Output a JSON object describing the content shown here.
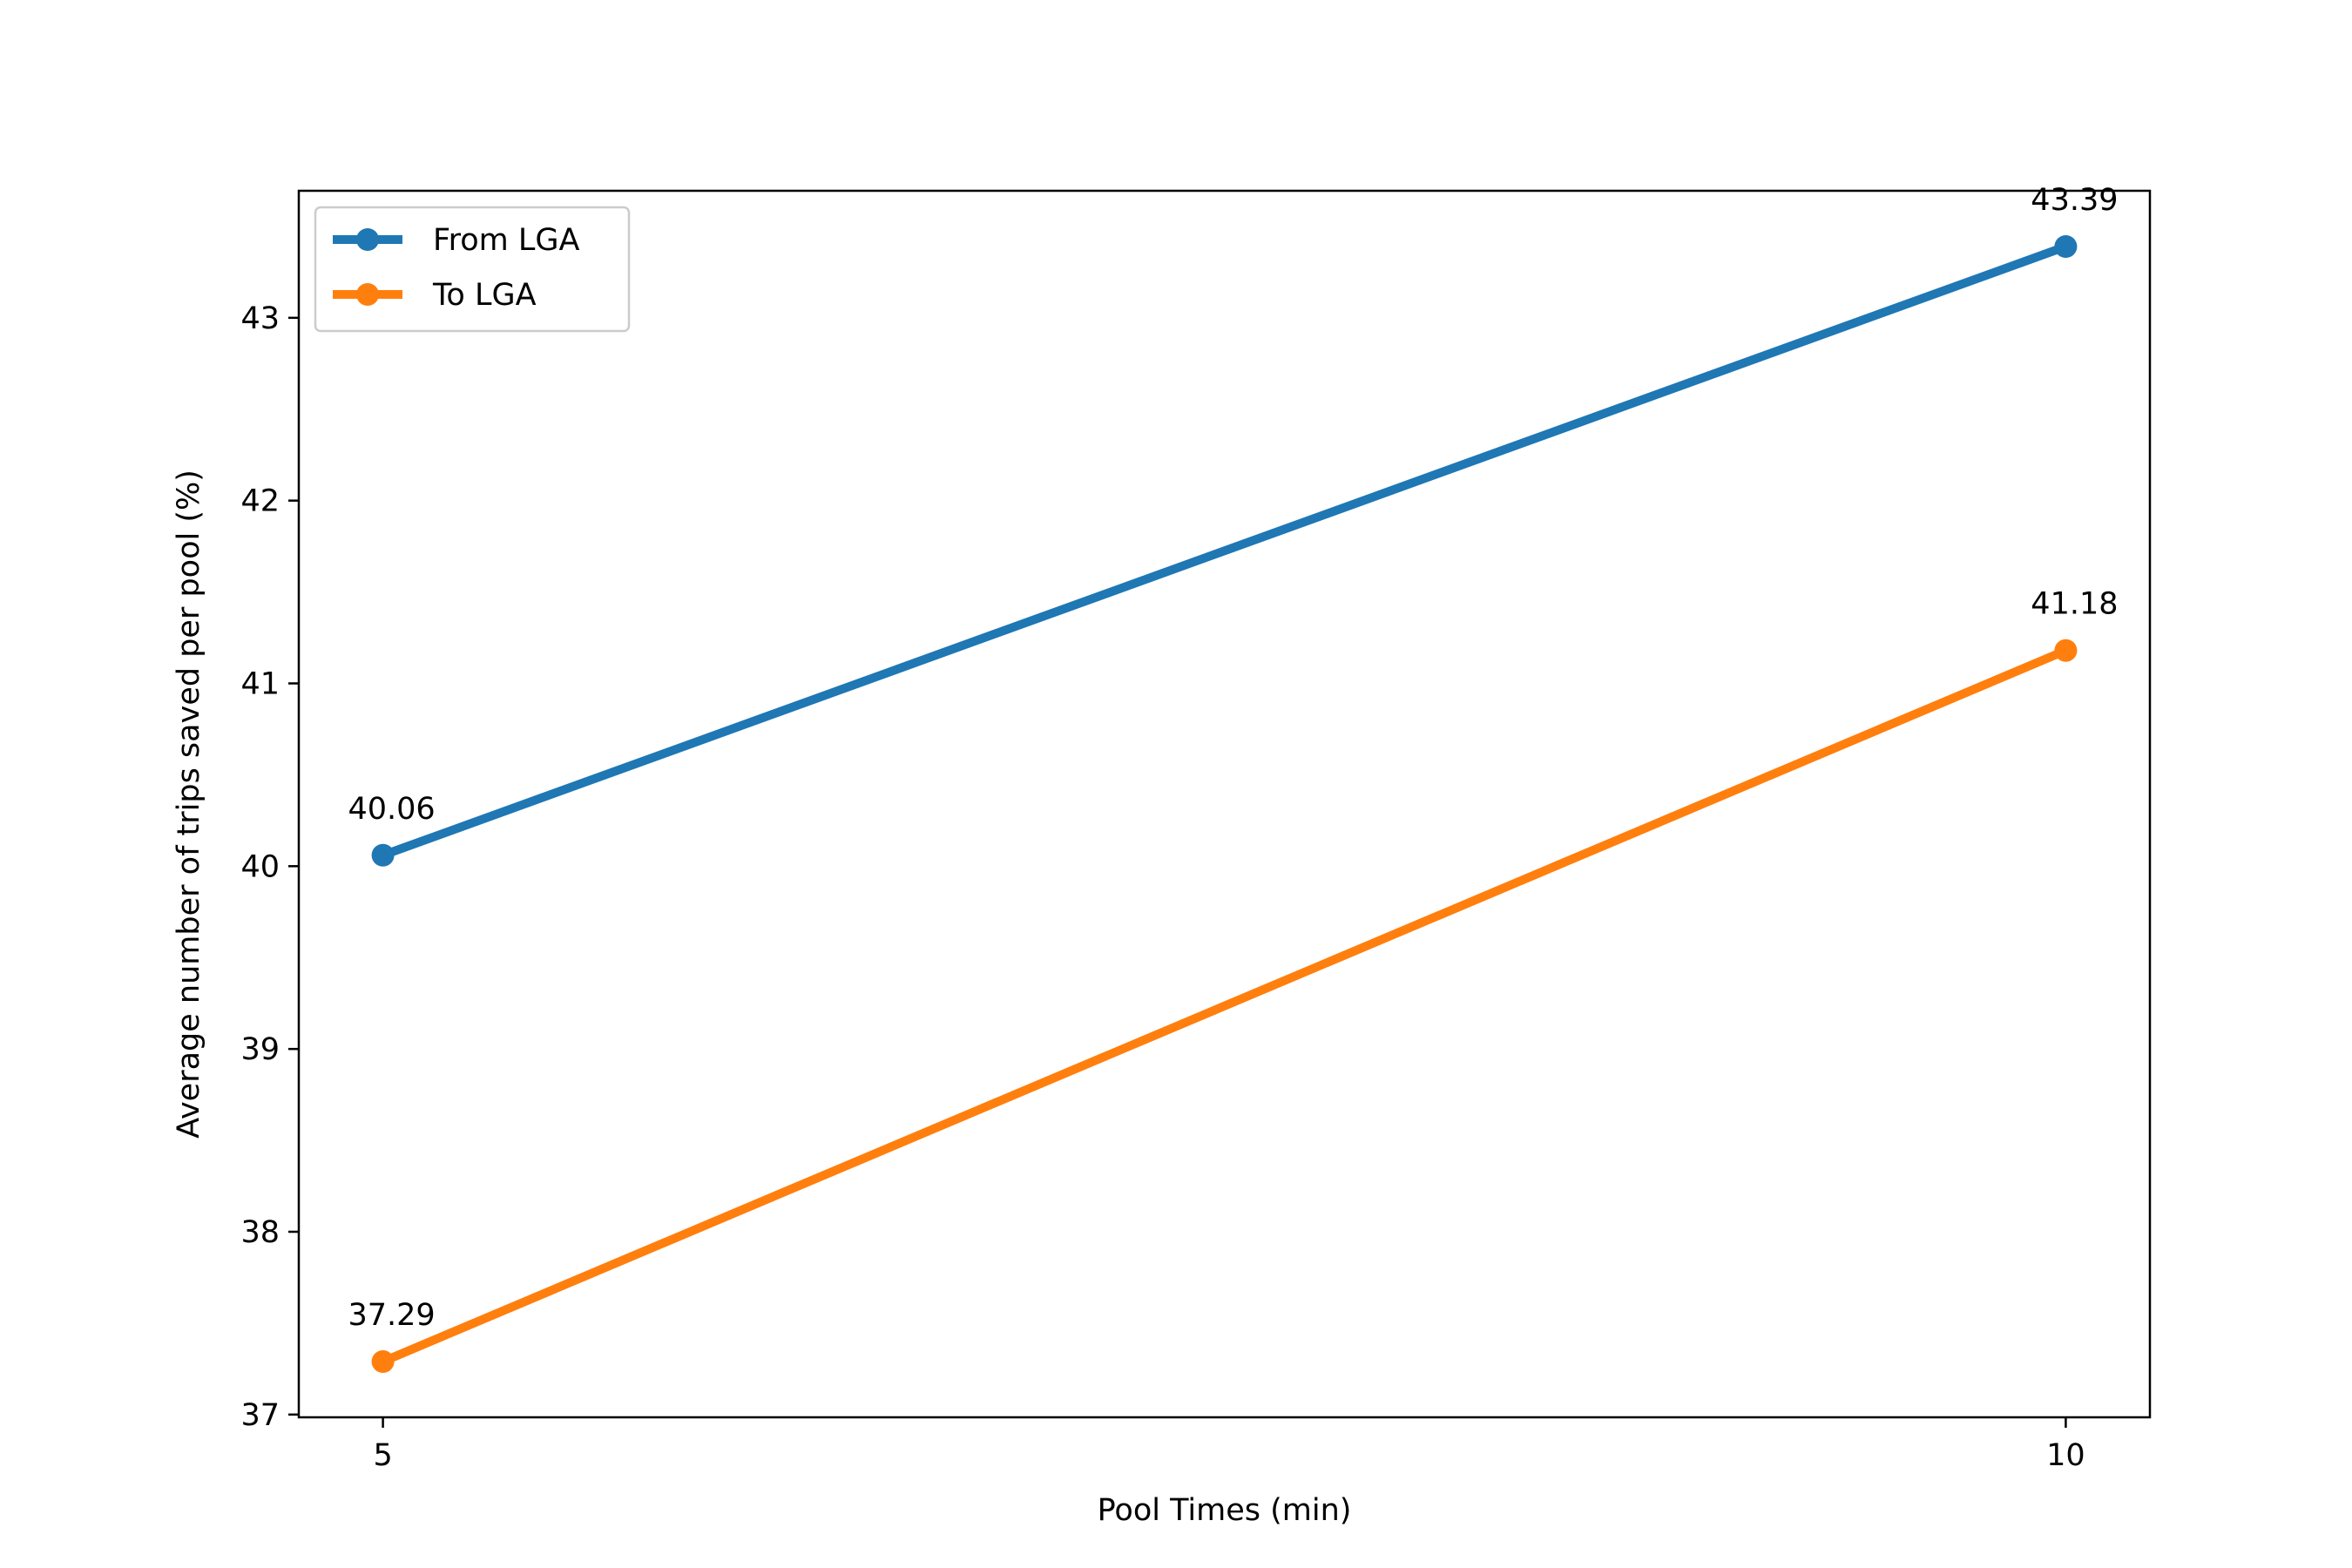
{
  "chart_data": {
    "type": "line",
    "title": "",
    "xlabel": "Pool Times (min)",
    "ylabel": "Average number of trips saved per pool (%)",
    "x": [
      5,
      10
    ],
    "xticks": [
      5,
      10
    ],
    "xlim": [
      4.75,
      10.25
    ],
    "yticks": [
      37,
      38,
      39,
      40,
      41,
      42,
      43
    ],
    "ylim": [
      36.985,
      43.695
    ],
    "grid": false,
    "legend": "top-left",
    "series": [
      {
        "name": "From LGA",
        "values": [
          40.06,
          43.39
        ],
        "labels": [
          "40.06",
          "43.39"
        ],
        "color": "#1f77b4",
        "marker": "circle"
      },
      {
        "name": "To LGA",
        "values": [
          37.29,
          41.18
        ],
        "labels": [
          "37.29",
          "41.18"
        ],
        "color": "#ff7f0e",
        "marker": "circle"
      }
    ]
  }
}
